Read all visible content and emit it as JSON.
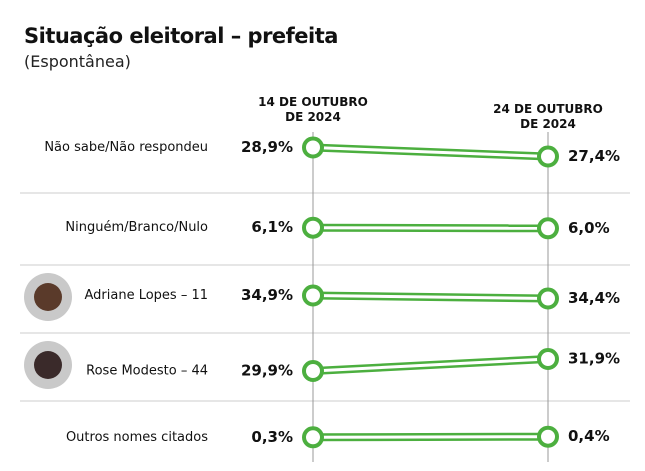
{
  "chart_data": {
    "type": "slope",
    "title": "Situação eleitoral – prefeita",
    "subtitle": "(Espontânea)",
    "categories": [
      "14 DE OUTUBRO DE 2024",
      "24 DE OUTUBRO DE 2024"
    ],
    "color": "#4caf3f",
    "series": [
      {
        "name": "Não sabe/Não respondeu",
        "values": [
          28.9,
          27.4
        ],
        "value_labels": [
          "28,9%",
          "27,4%"
        ]
      },
      {
        "name": "Ninguém/Branco/Nulo",
        "values": [
          6.1,
          6.0
        ],
        "value_labels": [
          "6,1%",
          "6,0%"
        ]
      },
      {
        "name": "Adriane Lopes – 11",
        "values": [
          34.9,
          34.4
        ],
        "value_labels": [
          "34,9%",
          "34,4%"
        ]
      },
      {
        "name": "Rose Modesto – 44",
        "values": [
          29.9,
          31.9
        ],
        "value_labels": [
          "29,9%",
          "31,9%"
        ]
      },
      {
        "name": "Outros nomes citados",
        "values": [
          0.3,
          0.4
        ],
        "value_labels": [
          "0,3%",
          "0,4%"
        ]
      }
    ]
  }
}
